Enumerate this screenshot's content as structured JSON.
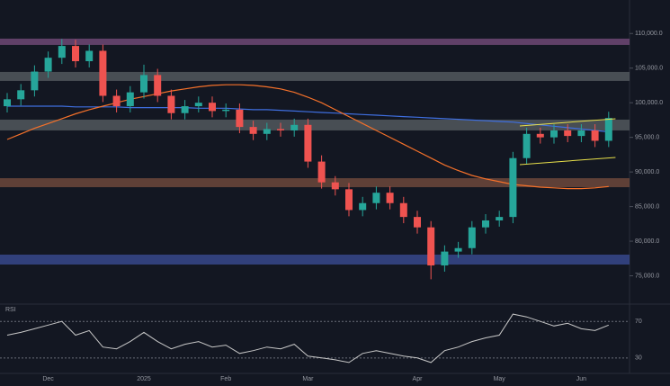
{
  "chart_data": {
    "type": "candlestick",
    "categories": [
      null,
      null,
      null,
      "Dec",
      null,
      null,
      null,
      null,
      null,
      null,
      "2025",
      null,
      null,
      null,
      null,
      null,
      "Feb",
      null,
      null,
      null,
      null,
      null,
      "Mar",
      null,
      null,
      null,
      null,
      null,
      null,
      null,
      "Apr",
      null,
      null,
      null,
      null,
      null,
      "May",
      null,
      null,
      null,
      null,
      null,
      "Jun",
      null,
      null
    ],
    "open": [
      99500,
      100500,
      101800,
      104500,
      106500,
      108200,
      106000,
      107500,
      101000,
      99500,
      101500,
      104000,
      101000,
      98500,
      99500,
      100000,
      98800,
      99000,
      96500,
      95500,
      96200,
      96000,
      96800,
      91500,
      88500,
      87500,
      84500,
      85500,
      87000,
      85500,
      83500,
      82000,
      76500,
      78500,
      79000,
      82000,
      83000,
      83500,
      92000,
      95500,
      95000,
      96000,
      95200,
      96000,
      94500
    ],
    "high": [
      101400,
      102700,
      105400,
      107400,
      109200,
      109100,
      108400,
      108400,
      101900,
      102400,
      105500,
      104900,
      101900,
      100400,
      100900,
      100900,
      99900,
      99900,
      97400,
      97100,
      97100,
      97700,
      97700,
      92400,
      89400,
      88400,
      86400,
      87900,
      87900,
      86400,
      84400,
      82900,
      79400,
      79900,
      82900,
      83900,
      84400,
      92900,
      96400,
      96400,
      96900,
      96900,
      96900,
      96900,
      98700
    ],
    "low": [
      98600,
      99600,
      100900,
      103600,
      105600,
      105100,
      105100,
      100100,
      98600,
      98600,
      100600,
      100100,
      97600,
      97600,
      98600,
      97900,
      97900,
      95600,
      94600,
      94600,
      95100,
      95100,
      90600,
      87600,
      86600,
      83600,
      83600,
      84600,
      84600,
      82600,
      81100,
      74500,
      75600,
      77600,
      78100,
      81100,
      82100,
      82600,
      91100,
      94100,
      94100,
      94300,
      94300,
      93600,
      93600
    ],
    "close": [
      100500,
      101800,
      104500,
      106500,
      108200,
      106000,
      107500,
      101000,
      99500,
      101500,
      104000,
      101000,
      98500,
      99500,
      100000,
      98800,
      99000,
      96500,
      95500,
      96200,
      96000,
      96800,
      91500,
      88500,
      87500,
      84500,
      85500,
      87000,
      85500,
      83500,
      82000,
      76500,
      78500,
      79000,
      82000,
      83000,
      83500,
      92000,
      95500,
      95000,
      96000,
      95200,
      96000,
      94500,
      97800
    ],
    "colors": {
      "up": "#26a69a",
      "down": "#ef5350"
    },
    "ylim": [
      71300,
      113800
    ],
    "yticks": [
      {
        "value": 75000,
        "label": "75,000.0"
      },
      {
        "value": 80000,
        "label": "80,000.0"
      },
      {
        "value": 85000,
        "label": "85,000.0"
      },
      {
        "value": 90000,
        "label": "90,000.0"
      },
      {
        "value": 95000,
        "label": "95,000.0"
      },
      {
        "value": 100000,
        "label": "100,000.0"
      },
      {
        "value": 105000,
        "label": "105,000.0"
      },
      {
        "value": 110000,
        "label": "110,000.0"
      }
    ],
    "overlays": [
      {
        "color": "#3f6fe0",
        "values": [
          99500,
          99500,
          99500,
          99500,
          99500,
          99400,
          99400,
          99400,
          99400,
          99300,
          99300,
          99300,
          99300,
          99300,
          99200,
          99200,
          99200,
          99100,
          99000,
          99000,
          98900,
          98800,
          98700,
          98600,
          98500,
          98400,
          98300,
          98200,
          98100,
          98000,
          97900,
          97800,
          97700,
          97600,
          97500,
          97400,
          97300,
          97200,
          97000,
          96800,
          96600,
          96400,
          96200,
          96000,
          95800
        ]
      },
      {
        "color": "#f5712a",
        "values": [
          94700,
          95500,
          96300,
          97000,
          97700,
          98400,
          99000,
          99500,
          100000,
          100500,
          100900,
          101300,
          101700,
          102000,
          102300,
          102500,
          102600,
          102600,
          102500,
          102300,
          102000,
          101500,
          100800,
          100000,
          99000,
          98000,
          97000,
          96000,
          95000,
          94000,
          93000,
          92000,
          91000,
          90200,
          89500,
          89000,
          88600,
          88200,
          88000,
          87800,
          87700,
          87600,
          87600,
          87700,
          87900
        ]
      }
    ],
    "zones": [
      {
        "range": [
          108350,
          109260
        ],
        "color": "#7b4f80"
      },
      {
        "range": [
          103150,
          104450
        ],
        "color": "#5b6166"
      },
      {
        "range": [
          96000,
          97560
        ],
        "color": "#5b6166"
      },
      {
        "range": [
          87800,
          89100
        ],
        "color": "#7a4f3f"
      },
      {
        "range": [
          76630,
          78060
        ],
        "color": "#3c4f9a"
      }
    ],
    "channel": [
      {
        "x": [
          37.5,
          44.5
        ],
        "values": [
          96650,
          97690
        ],
        "color": "#e8e04a"
      },
      {
        "x": [
          37.5,
          44.5
        ],
        "values": [
          91060,
          92100
        ],
        "color": "#e8e04a"
      }
    ],
    "rsi": {
      "values": [
        55,
        58,
        62,
        66,
        70,
        55,
        60,
        42,
        40,
        48,
        58,
        48,
        40,
        45,
        48,
        42,
        44,
        35,
        38,
        42,
        40,
        45,
        32,
        30,
        28,
        25,
        35,
        38,
        35,
        32,
        30,
        25,
        38,
        42,
        48,
        52,
        55,
        78,
        75,
        70,
        65,
        68,
        62,
        60,
        66
      ],
      "ylim": [
        20,
        85
      ],
      "levels": [
        70,
        30
      ],
      "color": "#c8c8c8",
      "label": "RSI"
    }
  }
}
